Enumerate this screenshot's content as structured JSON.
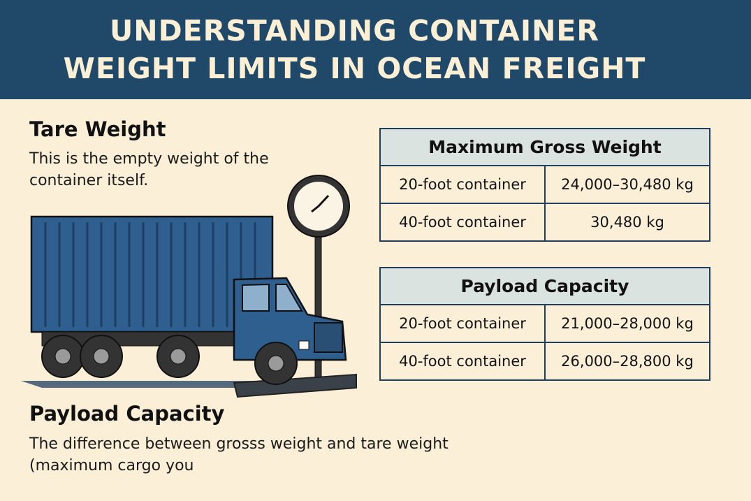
{
  "title": "UNDERSTANDING CONTAINER WEIGHT LIMITS IN OCEAN FREIGHT",
  "tare": {
    "heading": "Tare Weight",
    "text": "This is the empty weight of the container itself."
  },
  "payload": {
    "heading": "Payload Capacity",
    "text": "The difference between grosss weight and tare weight (maximum cargo you"
  },
  "gross_table": {
    "header": "Maximum Gross Weight",
    "rows": [
      {
        "type": "20-foot container",
        "value": "24,000–30,480 kg"
      },
      {
        "type": "40-foot container",
        "value": "30,480 kg"
      }
    ]
  },
  "payload_table": {
    "header": "Payload Capacity",
    "rows": [
      {
        "type": "20-foot container",
        "value": "21,000–28,000 kg"
      },
      {
        "type": "40-foot container",
        "value": "26,000–28,800 kg"
      }
    ]
  },
  "colors": {
    "banner": "#1f4869",
    "background": "#fcefd8",
    "truck": "#2f5f8f",
    "table_header": "#dbe3e0"
  }
}
